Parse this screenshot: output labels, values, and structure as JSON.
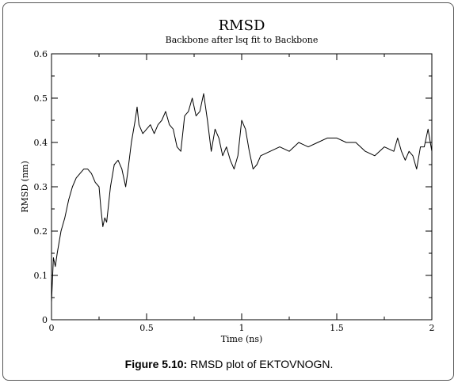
{
  "figure": {
    "caption_label": "Figure 5.10:",
    "caption_text": " RMSD plot of EKTOVNOGN."
  },
  "chart_data": {
    "type": "line",
    "title": "RMSD",
    "subtitle": "Backbone after lsq fit to Backbone",
    "xlabel": "Time (ns)",
    "ylabel": "RMSD (nm)",
    "xlim": [
      0,
      2
    ],
    "ylim": [
      0,
      0.6
    ],
    "x_ticks": [
      "0",
      "0.5",
      "1",
      "1.5",
      "2"
    ],
    "y_ticks": [
      "0",
      "0.1",
      "0.2",
      "0.3",
      "0.4",
      "0.5",
      "0.6"
    ],
    "grid": false,
    "series": [
      {
        "color": "#000000",
        "x": [
          0,
          0.01,
          0.02,
          0.03,
          0.05,
          0.07,
          0.09,
          0.11,
          0.13,
          0.15,
          0.17,
          0.19,
          0.21,
          0.23,
          0.25,
          0.26,
          0.27,
          0.28,
          0.29,
          0.3,
          0.31,
          0.33,
          0.35,
          0.37,
          0.39,
          0.4,
          0.42,
          0.44,
          0.45,
          0.46,
          0.48,
          0.5,
          0.52,
          0.54,
          0.56,
          0.58,
          0.6,
          0.62,
          0.64,
          0.66,
          0.68,
          0.7,
          0.72,
          0.74,
          0.76,
          0.78,
          0.8,
          0.82,
          0.84,
          0.86,
          0.88,
          0.9,
          0.92,
          0.94,
          0.96,
          0.98,
          1.0,
          1.02,
          1.04,
          1.06,
          1.08,
          1.1,
          1.15,
          1.2,
          1.25,
          1.3,
          1.35,
          1.4,
          1.45,
          1.5,
          1.55,
          1.6,
          1.65,
          1.7,
          1.75,
          1.8,
          1.82,
          1.84,
          1.86,
          1.88,
          1.9,
          1.92,
          1.94,
          1.96,
          1.98,
          2.0
        ],
        "y": [
          0.04,
          0.14,
          0.12,
          0.15,
          0.2,
          0.23,
          0.27,
          0.3,
          0.32,
          0.33,
          0.34,
          0.34,
          0.33,
          0.31,
          0.3,
          0.25,
          0.21,
          0.23,
          0.22,
          0.26,
          0.3,
          0.35,
          0.36,
          0.34,
          0.3,
          0.33,
          0.4,
          0.45,
          0.48,
          0.44,
          0.42,
          0.43,
          0.44,
          0.42,
          0.44,
          0.45,
          0.47,
          0.44,
          0.43,
          0.39,
          0.38,
          0.46,
          0.47,
          0.5,
          0.46,
          0.47,
          0.51,
          0.45,
          0.38,
          0.43,
          0.41,
          0.37,
          0.39,
          0.36,
          0.34,
          0.37,
          0.45,
          0.43,
          0.38,
          0.34,
          0.35,
          0.37,
          0.38,
          0.39,
          0.38,
          0.4,
          0.39,
          0.4,
          0.41,
          0.41,
          0.4,
          0.4,
          0.38,
          0.37,
          0.39,
          0.38,
          0.41,
          0.38,
          0.36,
          0.38,
          0.37,
          0.34,
          0.39,
          0.39,
          0.43,
          0.38
        ]
      }
    ]
  }
}
